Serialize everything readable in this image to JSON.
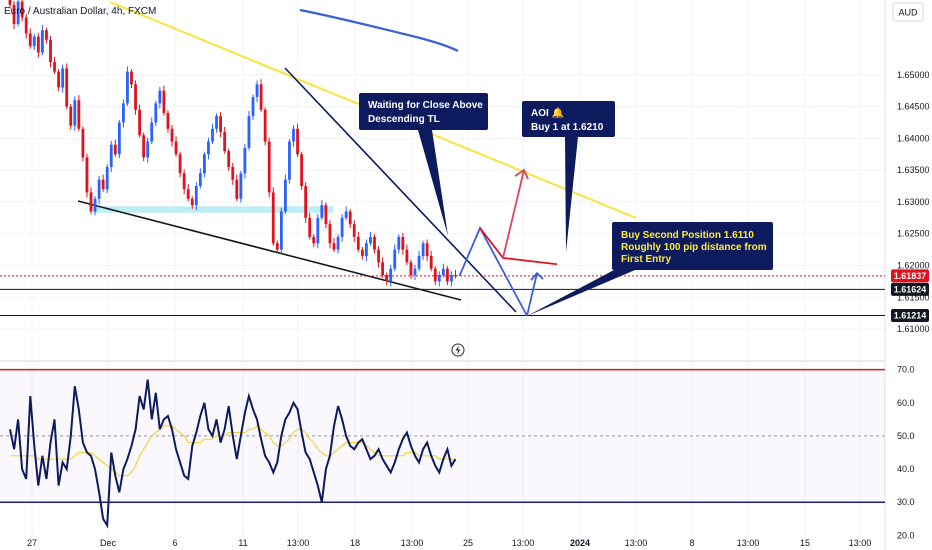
{
  "header": {
    "title": "Euro / Australian Dollar, 4h, FXCM",
    "currency": "AUD"
  },
  "colors": {
    "bull": "#2962ff",
    "bear": "#e0121e",
    "trend_yellow": "#f5e53c",
    "ma_blue": "#3b5fd9",
    "navy": "#0d1a5e",
    "support_zone": "#b2ebf2",
    "rsi_line": "#0d1a5e",
    "rsi_ma": "#f2d43c",
    "rsi_upper": "#e0121e",
    "rsi_lower": "#1a1f8c",
    "current_price": "#e0121e"
  },
  "annotations": {
    "callout_close": [
      "Waiting for Close Above",
      "Descending TL"
    ],
    "callout_aoi": [
      "AOI 🔔",
      "Buy 1 at 1.6210"
    ],
    "callout_second": [
      "Buy Second Position 1.6110",
      "Roughly 100 pip distance from",
      "First Entry"
    ]
  },
  "price_tags": {
    "current": "1.61837",
    "level_1": "1.61624",
    "level_2": "1.61214"
  },
  "chart_data": [
    {
      "type": "candlestick",
      "title": "Euro / Australian Dollar, 4h, FXCM",
      "y_axis_ticks": [
        "1.65000",
        "1.64500",
        "1.64000",
        "1.63500",
        "1.63000",
        "1.62500",
        "1.62000",
        "1.61500",
        "1.61000"
      ],
      "ylim": [
        1.6075,
        1.6605
      ],
      "x_axis_ticks": [
        "27",
        "Dec",
        "6",
        "11",
        "13:00",
        "18",
        "13:00",
        "25",
        "13:00",
        "2024",
        "13:00",
        "8",
        "13:00",
        "15",
        "13:00"
      ],
      "candle_close_series": [
        1.661,
        1.658,
        1.6615,
        1.659,
        1.6565,
        1.6545,
        1.656,
        1.6535,
        1.657,
        1.6555,
        1.652,
        1.6505,
        1.648,
        1.651,
        1.645,
        1.642,
        1.646,
        1.6415,
        1.637,
        1.6315,
        1.6285,
        1.6305,
        1.6335,
        1.632,
        1.6355,
        1.639,
        1.6375,
        1.6425,
        1.6455,
        1.6505,
        1.6485,
        1.6445,
        1.6405,
        1.637,
        1.6395,
        1.6425,
        1.6455,
        1.6475,
        1.644,
        1.6415,
        1.6395,
        1.6375,
        1.6345,
        1.632,
        1.6305,
        1.6295,
        1.6325,
        1.6345,
        1.6375,
        1.6395,
        1.6415,
        1.6435,
        1.641,
        1.638,
        1.6355,
        1.6335,
        1.6305,
        1.6345,
        1.6385,
        1.6435,
        1.6465,
        1.6485,
        1.6445,
        1.6395,
        1.6315,
        1.6235,
        1.6225,
        1.6285,
        1.6335,
        1.6395,
        1.6415,
        1.6375,
        1.6325,
        1.6275,
        1.6245,
        1.6235,
        1.6275,
        1.6295,
        1.6265,
        1.6235,
        1.6225,
        1.6245,
        1.6275,
        1.6285,
        1.6265,
        1.6245,
        1.6225,
        1.6215,
        1.6235,
        1.6245,
        1.6225,
        1.6205,
        1.6185,
        1.6175,
        1.6195,
        1.6225,
        1.6245,
        1.6225,
        1.6205,
        1.6185,
        1.6195,
        1.6215,
        1.6235,
        1.6215,
        1.6195,
        1.6175,
        1.6185,
        1.6195,
        1.6175,
        1.6185,
        1.61837
      ],
      "current_price": 1.61837,
      "horizontal_levels": [
        1.61624,
        1.61214
      ],
      "support_zone": [
        1.6283,
        1.6293
      ],
      "projected_path": [
        {
          "time": "Dec 25",
          "price": 1.6259
        },
        {
          "time": "Dec 26",
          "price": 1.6212
        },
        {
          "time": "Dec 27",
          "price": 1.6202
        }
      ],
      "projected_alt_path": [
        {
          "time": "Dec 26",
          "price": 1.6121
        },
        {
          "time": "Dec 26",
          "price": 1.6188
        }
      ],
      "grid": true
    },
    {
      "type": "line",
      "title": "RSI",
      "y_axis_ticks": [
        "70.0",
        "60.0",
        "50.0",
        "40.0",
        "30.0",
        "20.0"
      ],
      "ylim": [
        18,
        72
      ],
      "bands": [
        70,
        30
      ],
      "midline": 50,
      "series": [
        {
          "values": [
            52,
            46,
            55,
            40,
            37,
            62,
            47,
            35,
            44,
            37,
            48,
            55,
            35,
            42,
            40,
            50,
            65,
            58,
            48,
            45,
            44,
            40,
            33,
            25,
            23,
            45,
            38,
            33,
            40,
            43,
            47,
            52,
            62,
            58,
            67,
            55,
            63,
            52,
            55,
            56,
            52,
            46,
            42,
            38,
            37,
            47,
            51,
            56,
            60,
            52,
            50,
            55,
            48,
            52,
            59,
            50,
            43,
            50,
            57,
            62,
            58,
            55,
            49,
            44,
            42,
            39,
            42,
            50,
            55,
            57,
            60,
            58,
            51,
            45,
            43,
            39,
            35,
            30,
            40,
            44,
            53,
            59,
            55,
            50,
            47,
            46,
            48,
            49,
            46,
            43,
            44,
            46,
            43,
            41,
            39,
            42,
            46,
            49,
            51,
            47,
            44,
            42,
            46,
            48,
            44,
            41,
            39,
            43,
            46,
            41,
            43
          ]
        },
        {
          "values": [
            44,
            44,
            44,
            44,
            44,
            44,
            44,
            43,
            43,
            43,
            43,
            43,
            43,
            43,
            43,
            43,
            44,
            45,
            45,
            45,
            45,
            44,
            43,
            42,
            41,
            40,
            39,
            38,
            38,
            38,
            39,
            41,
            44,
            46,
            48,
            50,
            51,
            52,
            53,
            53,
            53,
            52,
            51,
            50,
            48,
            48,
            48,
            48,
            49,
            49,
            49,
            50,
            50,
            50,
            51,
            51,
            51,
            51,
            51,
            52,
            52,
            53,
            52,
            51,
            50,
            48,
            47,
            47,
            48,
            49,
            51,
            52,
            52,
            51,
            49,
            48,
            46,
            45,
            44,
            44,
            45,
            46,
            47,
            48,
            48,
            48,
            48,
            48,
            47,
            46,
            45,
            44,
            44,
            44,
            44,
            44,
            44,
            44,
            45,
            45,
            45,
            44,
            44,
            44,
            44,
            44,
            43,
            43,
            43,
            43,
            43
          ]
        }
      ]
    }
  ]
}
